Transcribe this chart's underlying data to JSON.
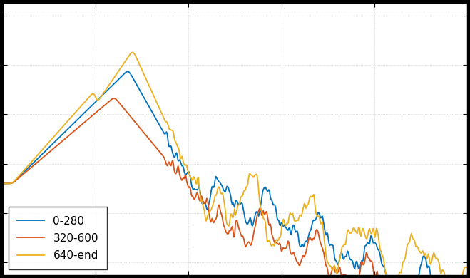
{
  "title": "",
  "xlabel": "",
  "ylabel": "",
  "line1_label": "0-280",
  "line2_label": "320-600",
  "line3_label": "640-end",
  "line1_color": "#0072BD",
  "line2_color": "#D95319",
  "line3_color": "#EDB120",
  "background_color": "#ffffff",
  "fig_background_color": "#000000",
  "grid_color": "#cccccc",
  "figsize": [
    6.59,
    3.9
  ],
  "dpi": 100
}
